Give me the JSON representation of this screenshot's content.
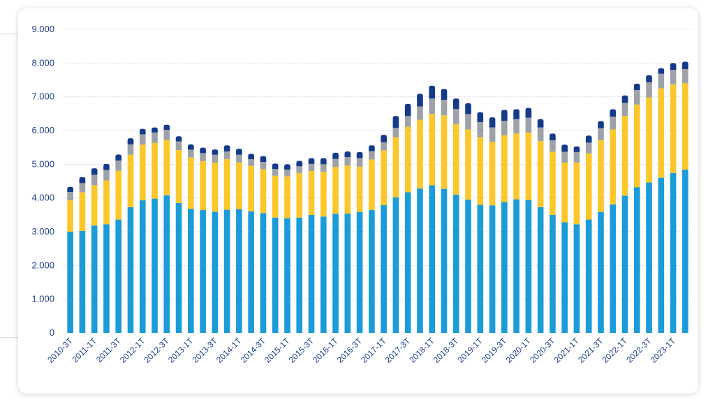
{
  "chart_data": {
    "type": "bar",
    "stacked": true,
    "y_ticks": [
      "0",
      "1.000",
      "2.000",
      "3.000",
      "4.000",
      "5.000",
      "6.000",
      "7.000",
      "8.000",
      "9.000"
    ],
    "ylim": [
      0,
      9000
    ],
    "grid": true,
    "categories": [
      "2010-3T",
      "2010-4T",
      "2011-1T",
      "2011-2T",
      "2011-3T",
      "2011-4T",
      "2012-1T",
      "2012-2T",
      "2012-3T",
      "2012-4T",
      "2013-1T",
      "2013-2T",
      "2013-3T",
      "2013-4T",
      "2014-1T",
      "2014-2T",
      "2014-3T",
      "2014-4T",
      "2015-1T",
      "2015-2T",
      "2015-3T",
      "2015-4T",
      "2016-1T",
      "2016-2T",
      "2016-3T",
      "2016-4T",
      "2017-1T",
      "2017-2T",
      "2017-3T",
      "2017-4T",
      "2018-1T",
      "2018-2T",
      "2018-3T",
      "2018-4T",
      "2019-1T",
      "2019-2T",
      "2019-3T",
      "2019-4T",
      "2020-1T",
      "2020-2T",
      "2020-3T",
      "2020-4T",
      "2021-1T",
      "2021-2T",
      "2021-3T",
      "2021-4T",
      "2022-1T",
      "2022-2T",
      "2022-3T",
      "2022-4T",
      "2023-1T",
      "2023-2T"
    ],
    "x_tick_labels": [
      "2010-3T",
      "2011-1T",
      "2011-3T",
      "2012-1T",
      "2012-3T",
      "2013-1T",
      "2013-3T",
      "2014-1T",
      "2014-3T",
      "2015-1T",
      "2015-3T",
      "2016-1T",
      "2016-3T",
      "2017-1T",
      "2017-3T",
      "2018-1T",
      "2018-3T",
      "2019-1T",
      "2019-3T",
      "2020-1T",
      "2020-3T",
      "2021-1T",
      "2021-3T",
      "2022-1T",
      "2022-3T",
      "2023-1T"
    ],
    "series": [
      {
        "color": "#1b9bd7",
        "values": [
          3000,
          3020,
          3180,
          3220,
          3360,
          3730,
          3930,
          3980,
          4080,
          3850,
          3680,
          3640,
          3590,
          3650,
          3670,
          3600,
          3550,
          3420,
          3400,
          3420,
          3500,
          3450,
          3530,
          3540,
          3580,
          3640,
          3790,
          4020,
          4170,
          4280,
          4380,
          4270,
          4100,
          3950,
          3800,
          3780,
          3880,
          3960,
          3940,
          3730,
          3500,
          3280,
          3220,
          3360,
          3580,
          3810,
          4070,
          4320,
          4460,
          4600,
          4740,
          4840
        ]
      },
      {
        "color": "#fcc72b",
        "values": [
          930,
          1150,
          1200,
          1300,
          1450,
          1550,
          1650,
          1650,
          1640,
          1570,
          1520,
          1450,
          1450,
          1500,
          1380,
          1350,
          1300,
          1240,
          1240,
          1320,
          1300,
          1330,
          1390,
          1420,
          1350,
          1500,
          1620,
          1780,
          1940,
          2040,
          2110,
          2180,
          2090,
          2080,
          2000,
          1880,
          1980,
          1950,
          2000,
          1960,
          1870,
          1770,
          1830,
          1960,
          2130,
          2220,
          2360,
          2450,
          2520,
          2650,
          2630,
          2560
        ]
      },
      {
        "color": "#9ea2a8",
        "values": [
          250,
          270,
          310,
          310,
          300,
          310,
          310,
          310,
          300,
          260,
          230,
          240,
          240,
          230,
          230,
          200,
          220,
          200,
          200,
          200,
          210,
          220,
          240,
          250,
          250,
          250,
          240,
          280,
          320,
          390,
          460,
          460,
          450,
          460,
          450,
          430,
          430,
          430,
          440,
          400,
          340,
          320,
          310,
          320,
          360,
          380,
          390,
          430,
          450,
          430,
          430,
          420
        ]
      },
      {
        "color": "#143a8a",
        "values": [
          150,
          180,
          190,
          180,
          180,
          180,
          160,
          150,
          150,
          150,
          160,
          160,
          160,
          180,
          180,
          160,
          170,
          160,
          160,
          160,
          170,
          180,
          180,
          170,
          180,
          170,
          220,
          350,
          360,
          380,
          380,
          320,
          310,
          320,
          290,
          300,
          320,
          290,
          290,
          250,
          200,
          210,
          170,
          210,
          210,
          220,
          220,
          190,
          210,
          170,
          200,
          220
        ]
      }
    ]
  }
}
